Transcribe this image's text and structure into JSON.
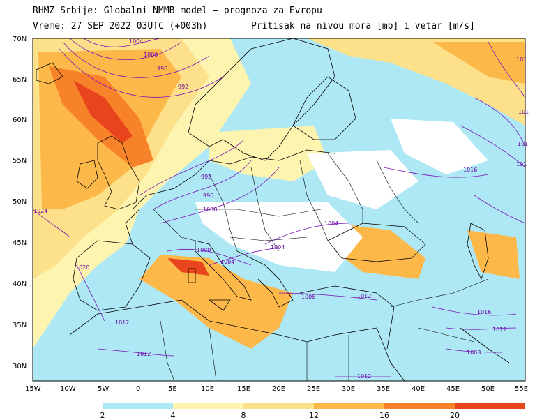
{
  "header": {
    "line1": "RHMZ Srbije: Globalni NMMB model — prognoza za Evropu",
    "line2": "Vreme: 27 SEP 2022 03UTC (+003h)",
    "line3": "Pritisak na nivou mora [mb] i vetar [m/s]"
  },
  "axes": {
    "lat_labels": [
      "70N",
      "65N",
      "60N",
      "55N",
      "50N",
      "45N",
      "40N",
      "35N",
      "30N"
    ],
    "lon_labels": [
      "15W",
      "10W",
      "5W",
      "0",
      "5E",
      "10E",
      "15E",
      "20E",
      "25E",
      "30E",
      "35E",
      "40E",
      "45E",
      "50E",
      "55E"
    ]
  },
  "isobar_labels": [
    "1004",
    "1000",
    "996",
    "992",
    "992",
    "996",
    "1000",
    "1000",
    "1004",
    "1004",
    "1004",
    "1008",
    "1012",
    "1012",
    "1012",
    "1016",
    "1016",
    "1012",
    "1008",
    "1020",
    "1012",
    "101",
    "101",
    "101",
    "101",
    "1024"
  ],
  "legend": {
    "labels": [
      "2",
      "4",
      "8",
      "12",
      "16",
      "20"
    ],
    "colors": [
      "#aee8f5",
      "#fdf4b0",
      "#fde08a",
      "#fdb84a",
      "#f8822a",
      "#e8451c",
      "#c01010"
    ]
  },
  "colors": {
    "land_outline": "#000000",
    "isobar": "#7a10b8",
    "sea_bg": "#ffffff"
  }
}
